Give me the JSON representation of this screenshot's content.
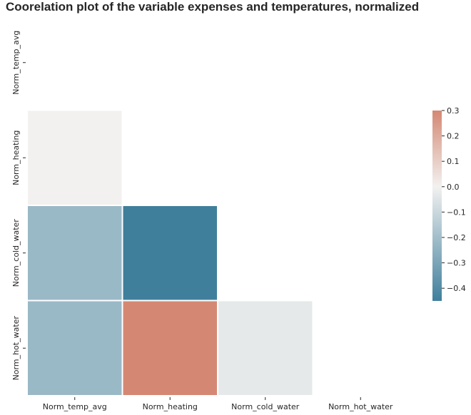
{
  "chart_data": {
    "type": "heatmap",
    "title": "Coorelation plot of the variable expenses and temperatures, normalized",
    "variables": [
      "Norm_temp_avg",
      "Norm_heating",
      "Norm_cold_water",
      "Norm_hot_water"
    ],
    "mask": "upper-triangle-including-diagonal",
    "cells": [
      {
        "row": "Norm_heating",
        "col": "Norm_temp_avg",
        "value": 0.0
      },
      {
        "row": "Norm_cold_water",
        "col": "Norm_temp_avg",
        "value": -0.22
      },
      {
        "row": "Norm_cold_water",
        "col": "Norm_heating",
        "value": -0.45
      },
      {
        "row": "Norm_hot_water",
        "col": "Norm_temp_avg",
        "value": -0.22
      },
      {
        "row": "Norm_hot_water",
        "col": "Norm_heating",
        "value": 0.3
      },
      {
        "row": "Norm_hot_water",
        "col": "Norm_cold_water",
        "value": -0.03
      }
    ],
    "colorbar": {
      "vmin": -0.45,
      "vmax": 0.3,
      "ticks": [
        0.3,
        0.2,
        0.1,
        0.0,
        -0.1,
        -0.2,
        -0.3,
        -0.4
      ],
      "tick_labels": [
        "0.3",
        "0.2",
        "0.1",
        "0.0",
        "−0.1",
        "−0.2",
        "−0.3",
        "−0.4"
      ],
      "colormap": {
        "low": "#3f7f9c",
        "mid": "#f2f1f0",
        "high": "#d48873"
      }
    }
  }
}
